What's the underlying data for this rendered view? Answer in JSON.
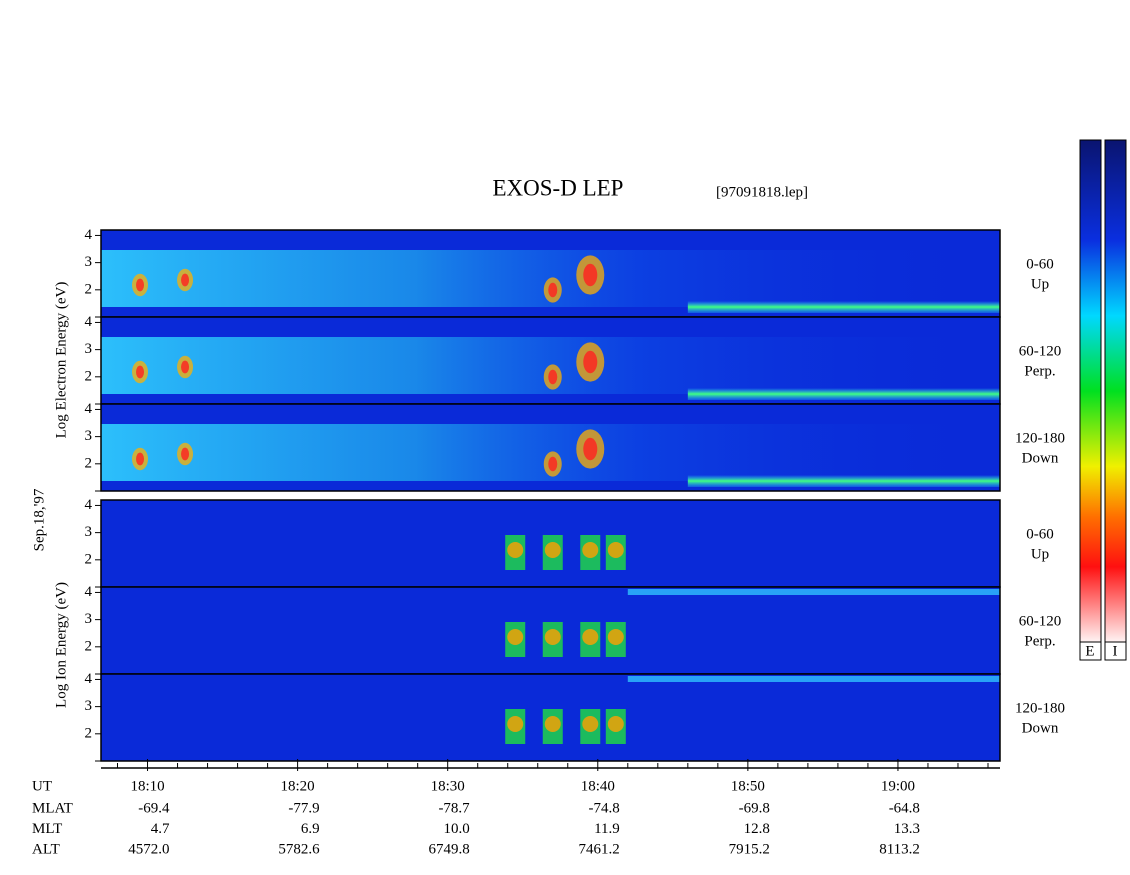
{
  "chart_data": {
    "type": "spectrogram",
    "title": "EXOS-D LEP",
    "file": "[97091818.lep]",
    "date": "Sep.18,'97",
    "electron_ylabel": "Log Electron Energy (eV)",
    "ion_ylabel": "Log Ion Energy (eV)",
    "panels": [
      {
        "species": "electron",
        "label": "0-60",
        "direction": "Up"
      },
      {
        "species": "electron",
        "label": "60-120",
        "direction": "Perp."
      },
      {
        "species": "electron",
        "label": "120-180",
        "direction": "Down"
      },
      {
        "species": "ion",
        "label": "0-60",
        "direction": "Up"
      },
      {
        "species": "ion",
        "label": "60-120",
        "direction": "Perp."
      },
      {
        "species": "ion",
        "label": "120-180",
        "direction": "Down"
      }
    ],
    "ylim": [
      1,
      4.2
    ],
    "yticks": [
      2,
      3,
      4
    ],
    "yminorticks": [
      1
    ],
    "xlim": [
      6.9,
      66.8
    ],
    "xticks": [
      {
        "value": 10,
        "label": "18:10"
      },
      {
        "value": 20,
        "label": "18:20"
      },
      {
        "value": 30,
        "label": "18:30"
      },
      {
        "value": 40,
        "label": "18:40"
      },
      {
        "value": 50,
        "label": "18:50"
      },
      {
        "value": 60,
        "label": "19:00"
      }
    ],
    "xminorticks": [
      8,
      12,
      14,
      16,
      18,
      22,
      24,
      26,
      28,
      32,
      34,
      36,
      38,
      42,
      44,
      46,
      48,
      52,
      54,
      56,
      58,
      62,
      64,
      66
    ],
    "ephemeris": {
      "labels": [
        "UT",
        "MLAT",
        "MLT",
        "ALT"
      ],
      "rows": [
        [
          "-69.4",
          "-77.9",
          "-78.7",
          "-74.8",
          "-69.8",
          "-64.8"
        ],
        [
          "4.7",
          "6.9",
          "10.0",
          "11.9",
          "12.8",
          "13.3"
        ],
        [
          "4572.0",
          "5782.6",
          "6749.8",
          "7461.2",
          "7915.2",
          "8113.2"
        ]
      ]
    },
    "colorbars": [
      "E",
      "I"
    ]
  }
}
